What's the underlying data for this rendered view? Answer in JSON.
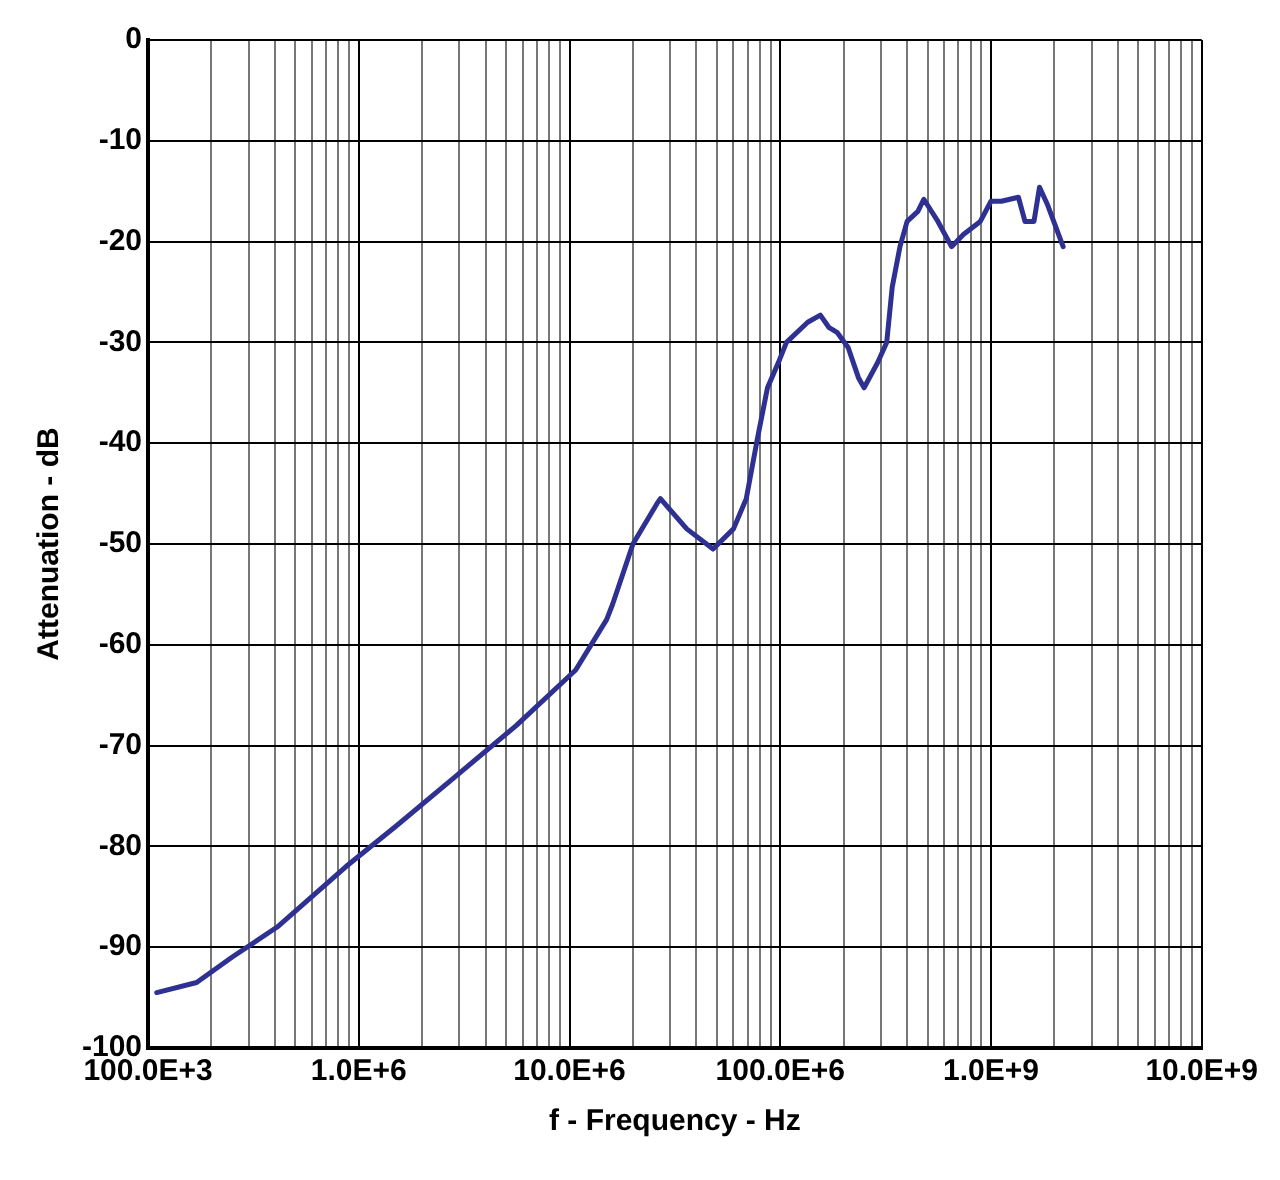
{
  "chart_data": {
    "type": "line",
    "xlabel": "f - Frequency - Hz",
    "ylabel": "Attenuation - dB",
    "log": "x",
    "grid": true,
    "legend": false,
    "marker": "none",
    "line_style": "solid",
    "xlim": [
      100000,
      10000000000
    ],
    "ylim": [
      -100,
      0
    ],
    "xticks": [
      {
        "value": 100000,
        "label": "100.0E+3"
      },
      {
        "value": 200000,
        "label": null
      },
      {
        "value": 300000,
        "label": null
      },
      {
        "value": 400000,
        "label": null
      },
      {
        "value": 500000,
        "label": null
      },
      {
        "value": 600000,
        "label": null
      },
      {
        "value": 700000,
        "label": null
      },
      {
        "value": 800000,
        "label": null
      },
      {
        "value": 900000,
        "label": null
      },
      {
        "value": 1000000,
        "label": "1.0E+6"
      },
      {
        "value": 2000000,
        "label": null
      },
      {
        "value": 3000000,
        "label": null
      },
      {
        "value": 4000000,
        "label": null
      },
      {
        "value": 5000000,
        "label": null
      },
      {
        "value": 6000000,
        "label": null
      },
      {
        "value": 7000000,
        "label": null
      },
      {
        "value": 8000000,
        "label": null
      },
      {
        "value": 9000000,
        "label": null
      },
      {
        "value": 10000000,
        "label": "10.0E+6"
      },
      {
        "value": 20000000,
        "label": null
      },
      {
        "value": 30000000,
        "label": null
      },
      {
        "value": 40000000,
        "label": null
      },
      {
        "value": 50000000,
        "label": null
      },
      {
        "value": 60000000,
        "label": null
      },
      {
        "value": 70000000,
        "label": null
      },
      {
        "value": 80000000,
        "label": null
      },
      {
        "value": 90000000,
        "label": null
      },
      {
        "value": 100000000,
        "label": "100.0E+6"
      },
      {
        "value": 200000000,
        "label": null
      },
      {
        "value": 300000000,
        "label": null
      },
      {
        "value": 400000000,
        "label": null
      },
      {
        "value": 500000000,
        "label": null
      },
      {
        "value": 600000000,
        "label": null
      },
      {
        "value": 700000000,
        "label": null
      },
      {
        "value": 800000000,
        "label": null
      },
      {
        "value": 900000000,
        "label": null
      },
      {
        "value": 1000000000,
        "label": "1.0E+9"
      },
      {
        "value": 2000000000,
        "label": null
      },
      {
        "value": 3000000000,
        "label": null
      },
      {
        "value": 4000000000,
        "label": null
      },
      {
        "value": 5000000000,
        "label": null
      },
      {
        "value": 6000000000,
        "label": null
      },
      {
        "value": 7000000000,
        "label": null
      },
      {
        "value": 8000000000,
        "label": null
      },
      {
        "value": 9000000000,
        "label": null
      },
      {
        "value": 10000000000,
        "label": "10.0E+9"
      }
    ],
    "yticks": [
      -100,
      -90,
      -80,
      -70,
      -60,
      -50,
      -40,
      -30,
      -20,
      -10,
      0
    ],
    "series": [
      {
        "color": "#2e3192",
        "x": [
          110000,
          170000,
          250000,
          410000,
          870000,
          1500000,
          2900000,
          5600000,
          10700000,
          15000000,
          16000000,
          20000000,
          26000000,
          27000000,
          36000000,
          48000000,
          60000000,
          69000000,
          78000000,
          87000000,
          98000000,
          107000000,
          135000000,
          155000000,
          170000000,
          186000000,
          210000000,
          235000000,
          250000000,
          290000000,
          320000000,
          340000000,
          370000000,
          400000000,
          450000000,
          480000000,
          560000000,
          650000000,
          740000000,
          890000000,
          1000000000,
          1120000000,
          1350000000,
          1450000000,
          1600000000,
          1700000000,
          1860000000,
          2200000000
        ],
        "values": [
          -94.5,
          -93.5,
          -91,
          -88,
          -82,
          -78,
          -73,
          -68,
          -62.5,
          -57.5,
          -56,
          -50,
          -46,
          -45.5,
          -48.5,
          -50.5,
          -48.5,
          -45.5,
          -39.5,
          -34.5,
          -32,
          -30,
          -28,
          -27.3,
          -28.5,
          -29,
          -30.5,
          -33.5,
          -34.5,
          -32,
          -30,
          -24.5,
          -20.5,
          -18,
          -17,
          -15.8,
          -18,
          -20.5,
          -19.3,
          -18,
          -16,
          -16,
          -15.6,
          -18,
          -18,
          -14.6,
          -16.4,
          -20.5
        ]
      }
    ]
  }
}
